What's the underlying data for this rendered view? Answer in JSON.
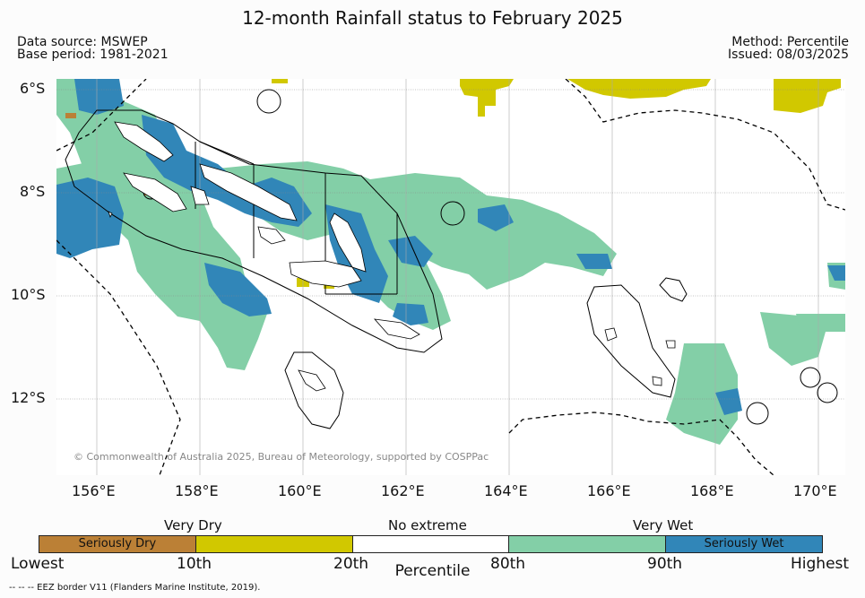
{
  "title": "12-month Rainfall status to February 2025",
  "meta": {
    "data_source": "Data source: MSWEP",
    "base_period": "Base period: 1981-2021",
    "method": "Method: Percentile",
    "issued": "Issued: 08/03/2025"
  },
  "map": {
    "lon_range": [
      155.1,
      170.5
    ],
    "lat_range": [
      -13.5,
      -5.8
    ],
    "lat_labels": [
      "6°S",
      "8°S",
      "10°S",
      "12°S"
    ],
    "lon_labels": [
      "156°E",
      "158°E",
      "160°E",
      "162°E",
      "164°E",
      "166°E",
      "168°E",
      "170°E"
    ],
    "copyright": "© Commonwealth of Australia 2025, Bureau of Meteorology, supported by COSPPac"
  },
  "legend": {
    "categories": [
      "Very Dry",
      "No extreme",
      "Very Wet"
    ],
    "segments": [
      {
        "label": "Seriously Dry",
        "color": "#bb8036"
      },
      {
        "label": "",
        "color": "#d1c800"
      },
      {
        "label": "",
        "color": "#ffffff"
      },
      {
        "label": "",
        "color": "#83cfa7"
      },
      {
        "label": "Seriously Wet",
        "color": "#3186b8"
      }
    ],
    "ticks": [
      "Lowest",
      "10th",
      "20th",
      "80th",
      "90th",
      "Highest"
    ],
    "axis_title": "Percentile",
    "eez_note": "--  --  -- EEZ border V11 (Flanders Marine Institute, 2019)."
  },
  "colors": {
    "seriously_dry": "#bb8036",
    "very_dry": "#d1c800",
    "very_wet": "#83cfa7",
    "seriously_wet": "#3186b8"
  }
}
